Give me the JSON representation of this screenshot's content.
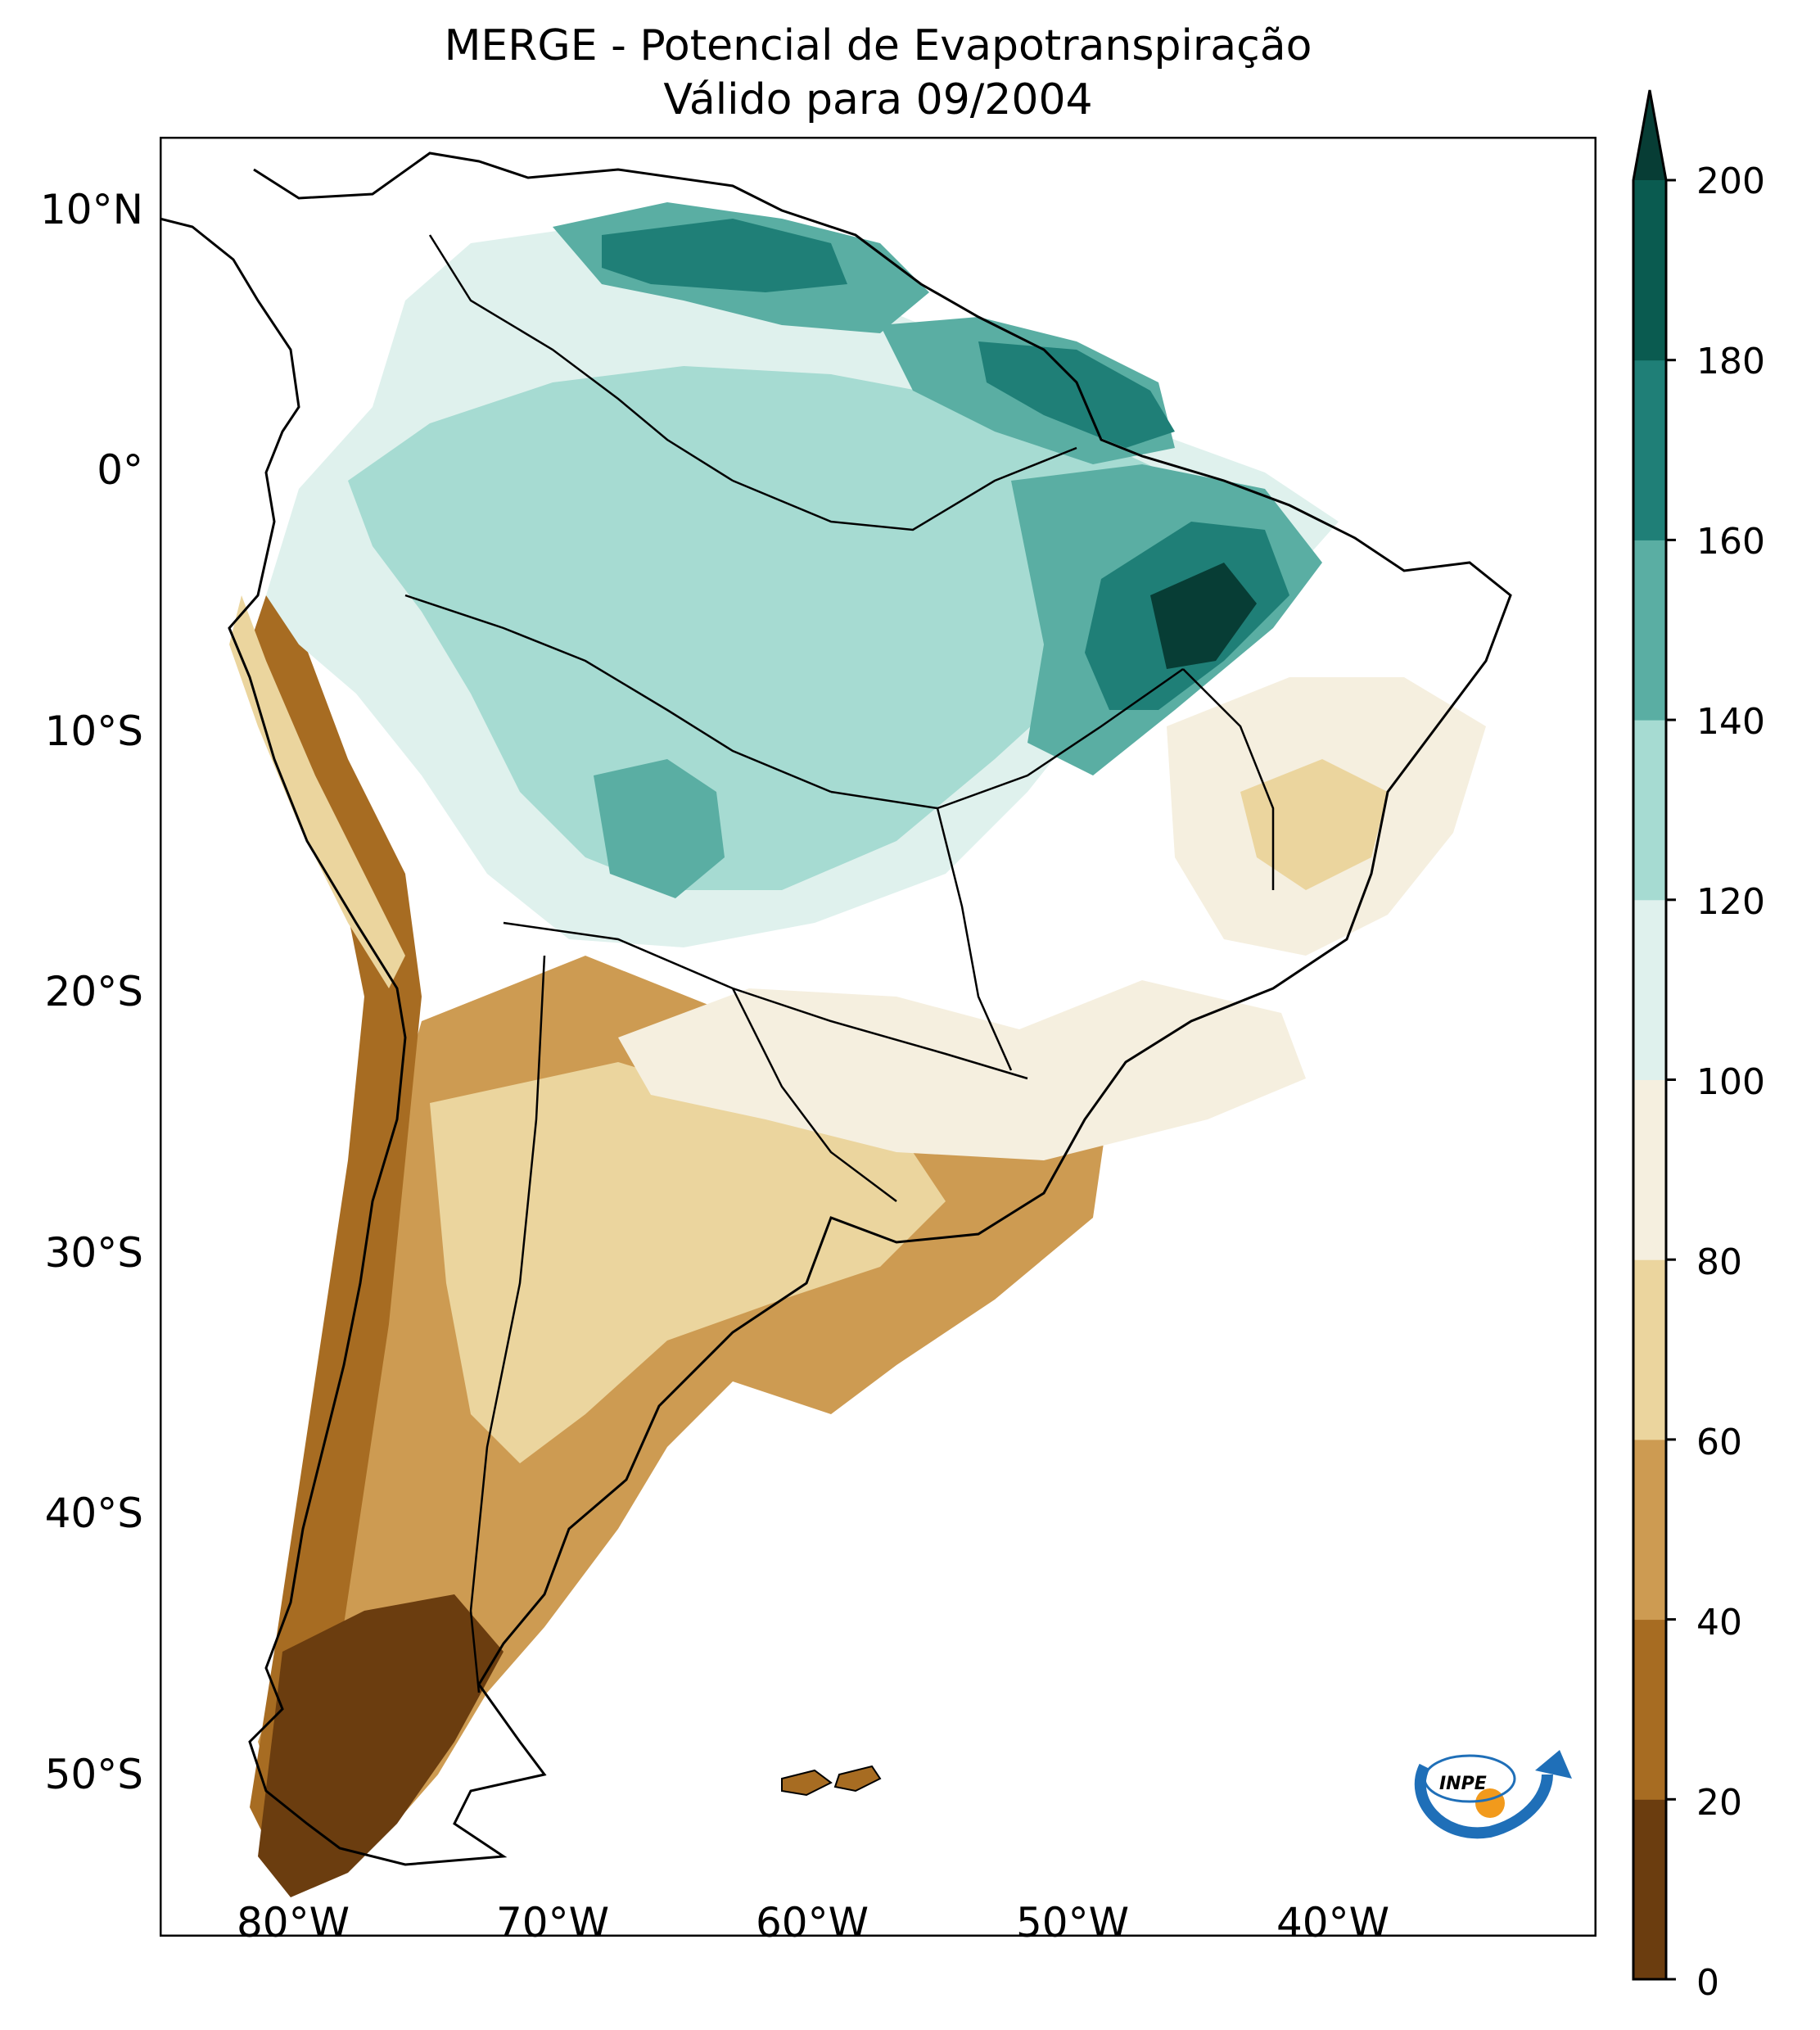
{
  "title": {
    "line1": "MERGE - Potencial de Evapotranspiração",
    "line2": "Válido para 09/2004"
  },
  "axes": {
    "lat_ticks": [
      "10°N",
      "0°",
      "10°S",
      "20°S",
      "30°S",
      "40°S",
      "50°S"
    ],
    "lon_ticks": [
      "80°W",
      "70°W",
      "60°W",
      "50°W",
      "40°W"
    ]
  },
  "colorbar": {
    "ticks": [
      "0",
      "20",
      "40",
      "60",
      "80",
      "100",
      "120",
      "140",
      "160",
      "180",
      "200"
    ],
    "colors": [
      "#6b3d0f",
      "#a76c22",
      "#cd9b52",
      "#ebd59e",
      "#f5efdf",
      "#dff1ed",
      "#a6dbd2",
      "#5aaea3",
      "#1f7f77",
      "#0a5b50",
      "#073d35"
    ],
    "extend": "max"
  },
  "logo": {
    "text": "INPE"
  }
}
